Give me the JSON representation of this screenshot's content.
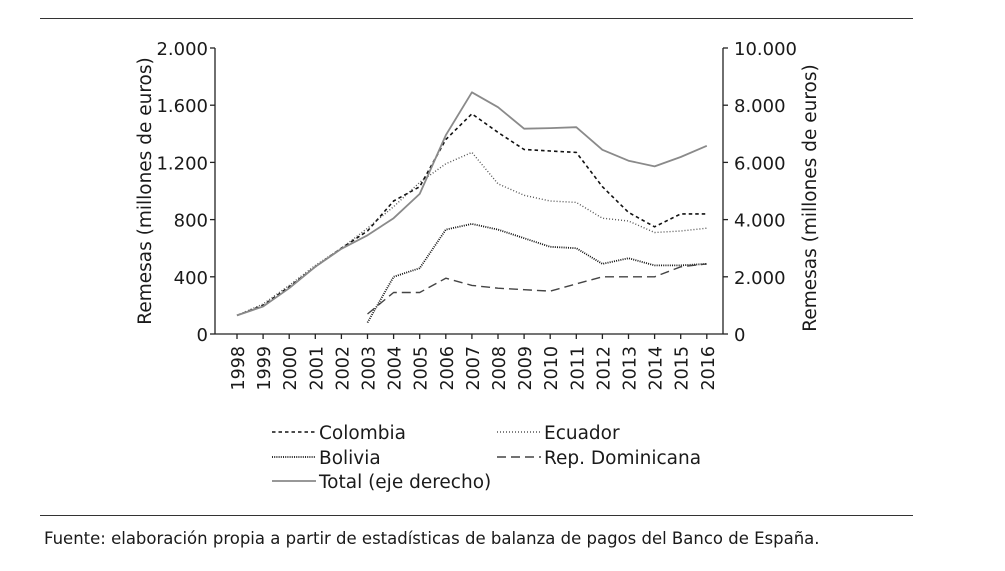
{
  "chart_data": {
    "type": "line",
    "xlabel": "",
    "ylabel_left": "Remesas (millones de euros)",
    "ylabel_right": "Remesas (millones de euros)",
    "ylim_left": [
      0,
      2000
    ],
    "ylim_right": [
      0,
      10000
    ],
    "yticks_left": [
      0,
      400,
      800,
      1200,
      1600,
      2000
    ],
    "yticks_left_labels": [
      "0",
      "400",
      "800",
      "1.200",
      "1.600",
      "2.000"
    ],
    "yticks_right": [
      0,
      2000,
      4000,
      6000,
      8000,
      10000
    ],
    "yticks_right_labels": [
      "0",
      "2.000",
      "4.000",
      "6.000",
      "8.000",
      "10.000"
    ],
    "x": [
      "1998",
      "1999",
      "2000",
      "2001",
      "2002",
      "2003",
      "2004",
      "2005",
      "2006",
      "2007",
      "2008",
      "2009",
      "2010",
      "2011",
      "2012",
      "2013",
      "2014",
      "2015",
      "2016"
    ],
    "grid": false,
    "legend_position": "bottom",
    "series": [
      {
        "name": "Colombia",
        "axis": "left",
        "style": "dashed-fine",
        "values": [
          130,
          200,
          330,
          470,
          600,
          720,
          930,
          1030,
          1360,
          1540,
          1410,
          1290,
          1280,
          1270,
          1030,
          850,
          750,
          840,
          840
        ]
      },
      {
        "name": "Ecuador",
        "axis": "left",
        "style": "dotted-fine",
        "values": [
          130,
          210,
          340,
          480,
          600,
          740,
          890,
          1060,
          1190,
          1270,
          1050,
          970,
          930,
          920,
          810,
          790,
          710,
          720,
          740
        ]
      },
      {
        "name": "Bolivia",
        "axis": "left",
        "style": "dotted-dense",
        "values": [
          null,
          null,
          null,
          null,
          null,
          80,
          400,
          460,
          730,
          770,
          730,
          670,
          610,
          600,
          490,
          530,
          480,
          480,
          490
        ]
      },
      {
        "name": "Rep. Dominicana",
        "axis": "left",
        "style": "dashed-long",
        "values": [
          null,
          null,
          null,
          null,
          null,
          140,
          290,
          290,
          390,
          340,
          320,
          310,
          300,
          350,
          400,
          400,
          400,
          470,
          490
        ]
      },
      {
        "name": "Total (eje derecho)",
        "axis": "right",
        "style": "solid",
        "values": [
          650,
          960,
          1600,
          2350,
          2980,
          3450,
          4050,
          4900,
          6950,
          8450,
          7930,
          7180,
          7200,
          7230,
          6440,
          6060,
          5860,
          6190,
          6580
        ]
      }
    ],
    "legend": [
      {
        "label": "Colombia",
        "style": "dashed-fine"
      },
      {
        "label": "Ecuador",
        "style": "dotted-fine"
      },
      {
        "label": "Bolivia",
        "style": "dotted-dense"
      },
      {
        "label": "Rep. Dominicana",
        "style": "dashed-long"
      },
      {
        "label": "Total (eje derecho)",
        "style": "solid"
      }
    ]
  },
  "source_note": "Fuente: elaboración propia a partir de estadísticas de balanza de pagos del Banco de España."
}
